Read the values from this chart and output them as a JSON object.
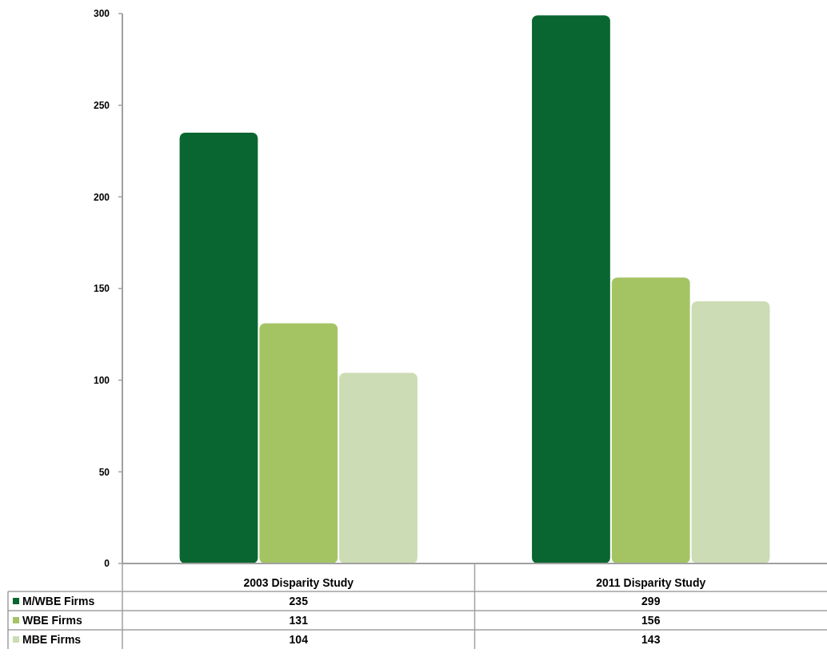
{
  "chart_data": {
    "type": "bar",
    "categories": [
      "2003 Disparity Study",
      "2011 Disparity Study"
    ],
    "series": [
      {
        "name": "M/WBE Firms",
        "color": "#0a6630",
        "values": [
          235,
          299
        ]
      },
      {
        "name": "WBE Firms",
        "color": "#a4c464",
        "values": [
          131,
          156
        ]
      },
      {
        "name": "MBE Firms",
        "color": "#ccdcb4",
        "values": [
          104,
          143
        ]
      }
    ],
    "ylim": [
      0,
      300
    ],
    "yticks": [
      0,
      50,
      100,
      150,
      200,
      250,
      300
    ],
    "data_labels": true,
    "legend": "bottom left"
  }
}
